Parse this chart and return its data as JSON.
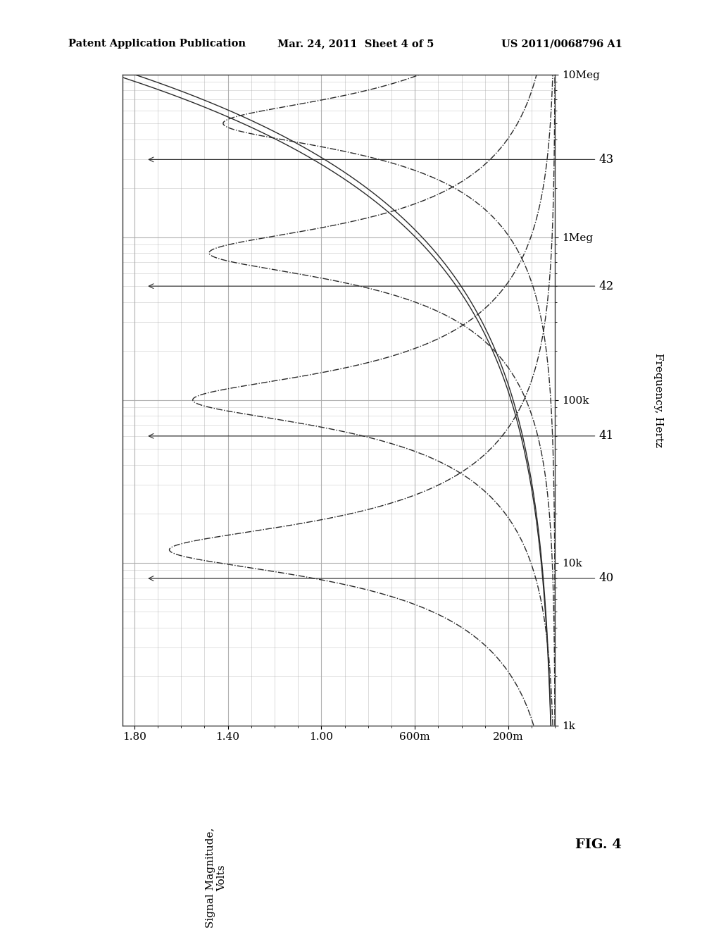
{
  "header_left": "Patent Application Publication",
  "header_mid": "Mar. 24, 2011  Sheet 4 of 5",
  "header_right": "US 2011/0068796 A1",
  "fig_label": "FIG. 4",
  "ylabel_rotated": "Frequency, Hertz",
  "xlabel_rotated": "Signal Magnitude,\nVolts",
  "freq_tick_labels": [
    "1k",
    "10k",
    "100k",
    "1Meg",
    "10Meg"
  ],
  "mag_tick_labels": [
    "1.80",
    "1.40",
    "1.00",
    "600m",
    "200m"
  ],
  "curve_labels": [
    "40",
    "41",
    "42",
    "43"
  ],
  "bg_color": "#ffffff",
  "line_color": "#2a2a2a",
  "grid_color": "#aaaaaa",
  "f_centers": [
    12000,
    100000,
    800000,
    5000000
  ],
  "Q_vals": [
    1.5,
    1.5,
    1.5,
    1.5
  ],
  "peak_mags": [
    1.65,
    1.55,
    1.48,
    1.42
  ]
}
